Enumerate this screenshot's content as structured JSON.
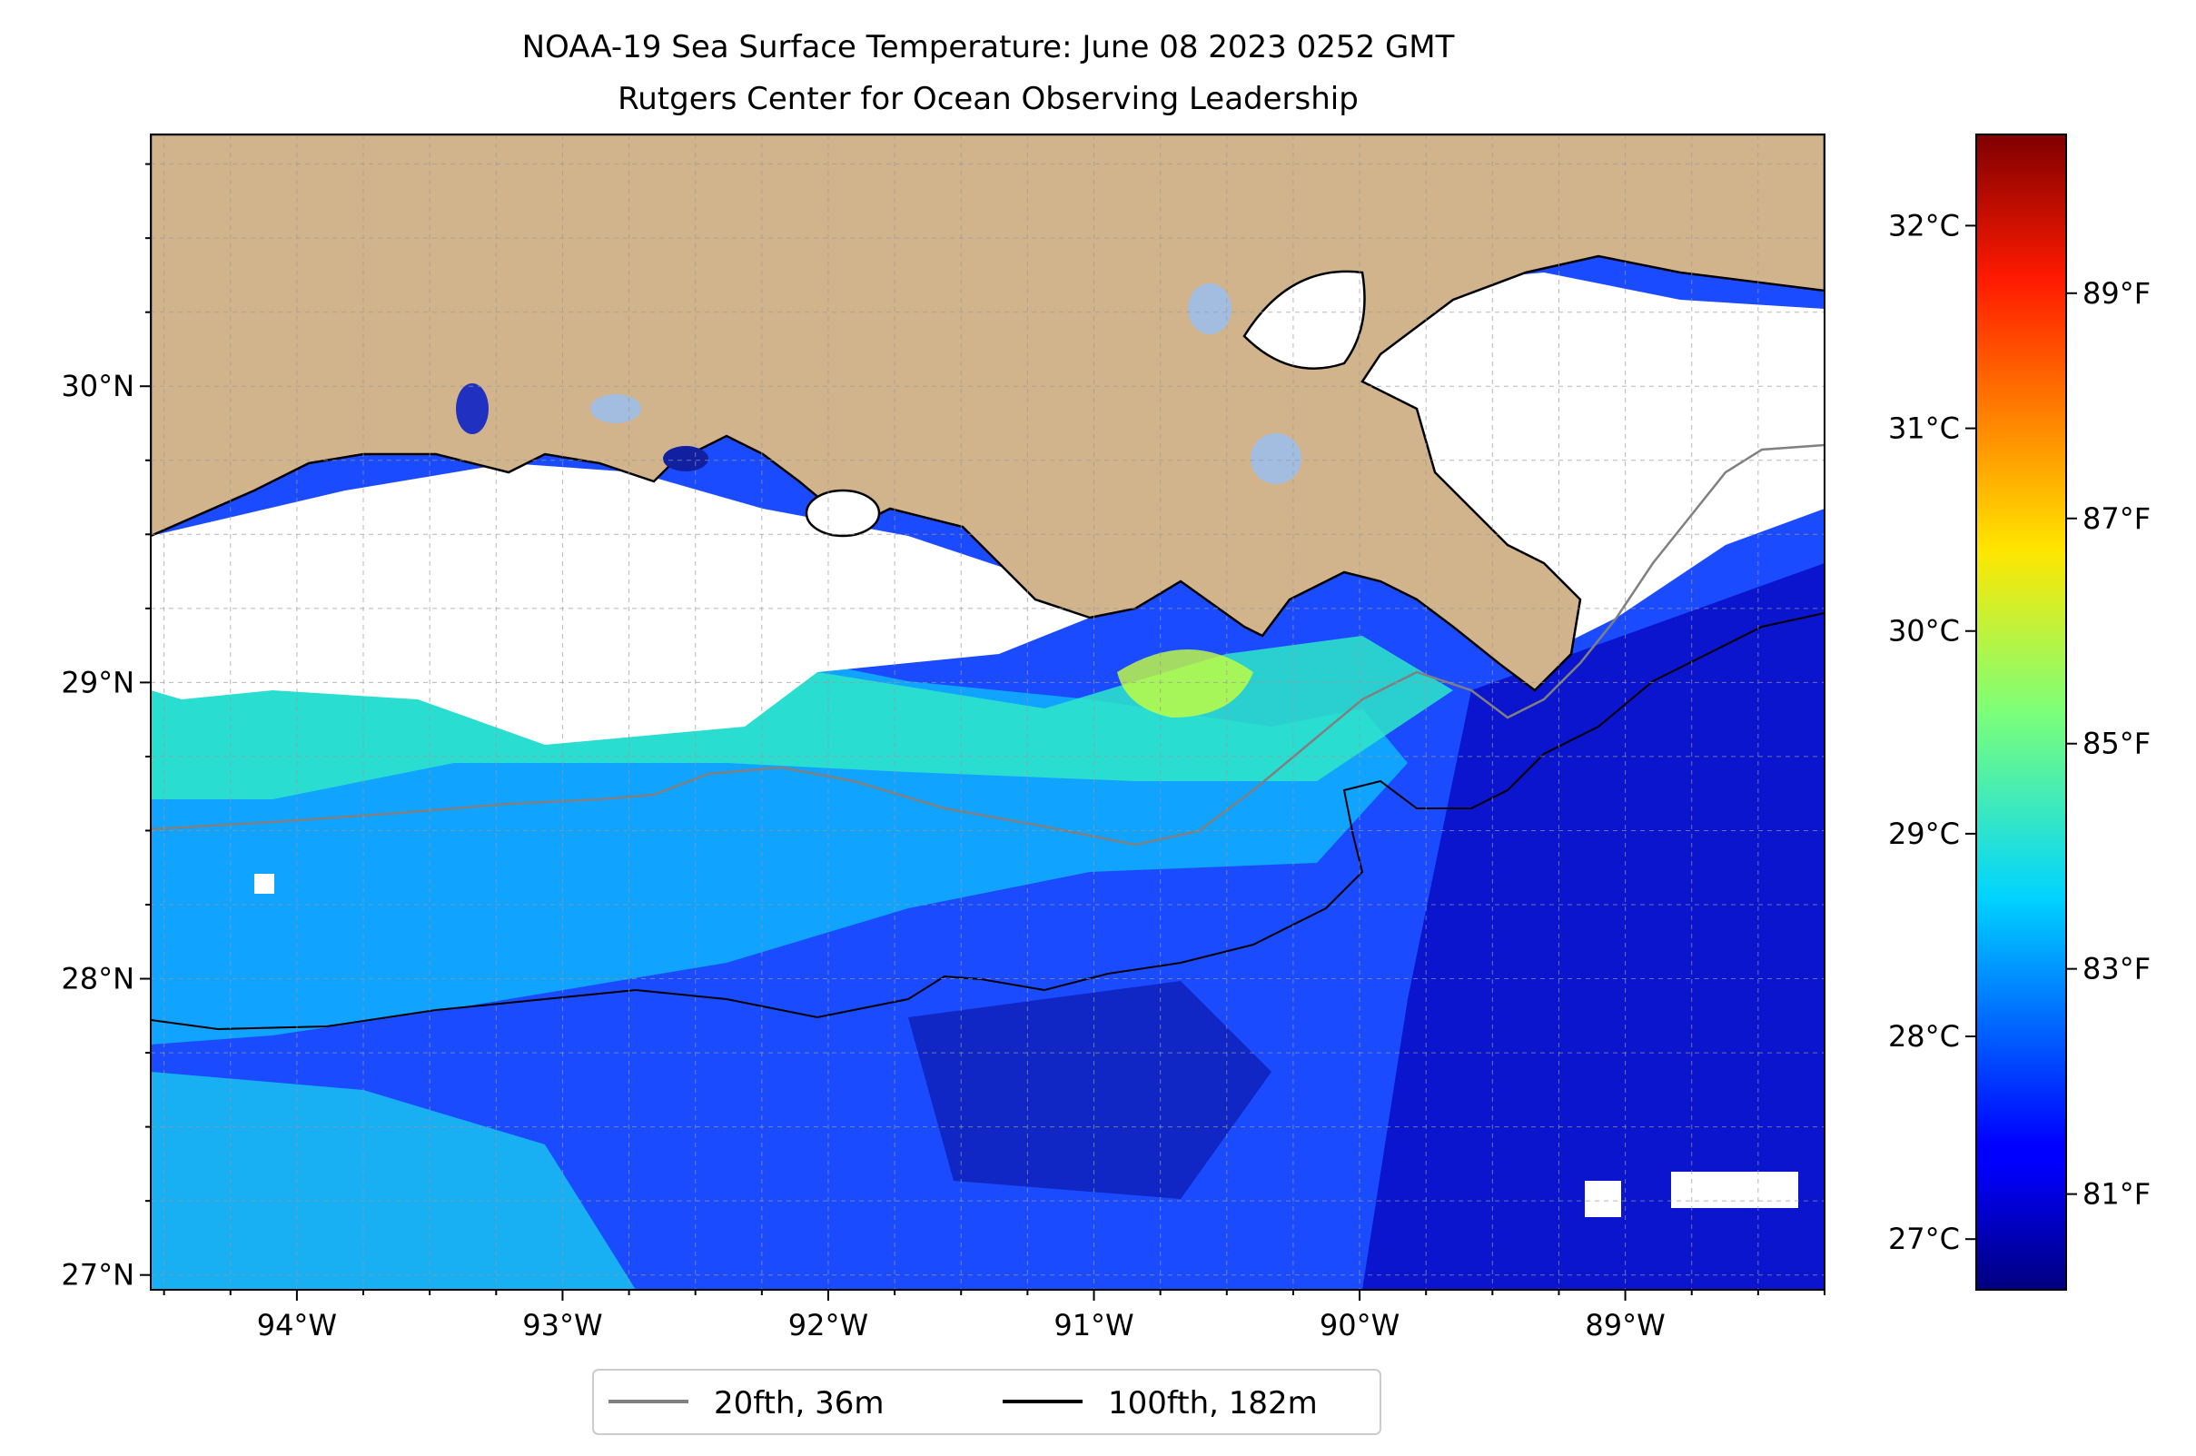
{
  "title": {
    "line1": "NOAA-19 Sea Surface Temperature: June 08 2023 0252 GMT",
    "line2": "Rutgers Center for Ocean Observing Leadership"
  },
  "map": {
    "lon_range": [
      -94.55,
      -88.25
    ],
    "lat_range": [
      26.95,
      30.85
    ],
    "lon_ticks": [
      {
        "value": -94,
        "label": "94°W"
      },
      {
        "value": -93,
        "label": "93°W"
      },
      {
        "value": -92,
        "label": "92°W"
      },
      {
        "value": -91,
        "label": "91°W"
      },
      {
        "value": -90,
        "label": "90°W"
      },
      {
        "value": -89,
        "label": "89°W"
      }
    ],
    "lat_ticks": [
      {
        "value": 27,
        "label": "27°N"
      },
      {
        "value": 28,
        "label": "28°N"
      },
      {
        "value": 29,
        "label": "29°N"
      },
      {
        "value": 30,
        "label": "30°N"
      }
    ],
    "grid": true,
    "colors": {
      "land": "#d2b48c",
      "inland_water": "#a3bde0",
      "cloud_mask": "#ffffff",
      "coastline": "#000000"
    }
  },
  "colorbar": {
    "colormap": "jet",
    "range_c": [
      26.75,
      32.45
    ],
    "celsius_ticks": [
      {
        "value": 27,
        "label": "27°C"
      },
      {
        "value": 28,
        "label": "28°C"
      },
      {
        "value": 29,
        "label": "29°C"
      },
      {
        "value": 30,
        "label": "30°C"
      },
      {
        "value": 31,
        "label": "31°C"
      },
      {
        "value": 32,
        "label": "32°C"
      }
    ],
    "fahrenheit_ticks": [
      {
        "value": 81,
        "label": "81°F"
      },
      {
        "value": 83,
        "label": "83°F"
      },
      {
        "value": 85,
        "label": "85°F"
      },
      {
        "value": 87,
        "label": "87°F"
      },
      {
        "value": 89,
        "label": "89°F"
      }
    ]
  },
  "legend": {
    "items": [
      {
        "label": "20fth, 36m",
        "color": "#808080"
      },
      {
        "label": "100fth, 182m",
        "color": "#000000"
      }
    ]
  }
}
